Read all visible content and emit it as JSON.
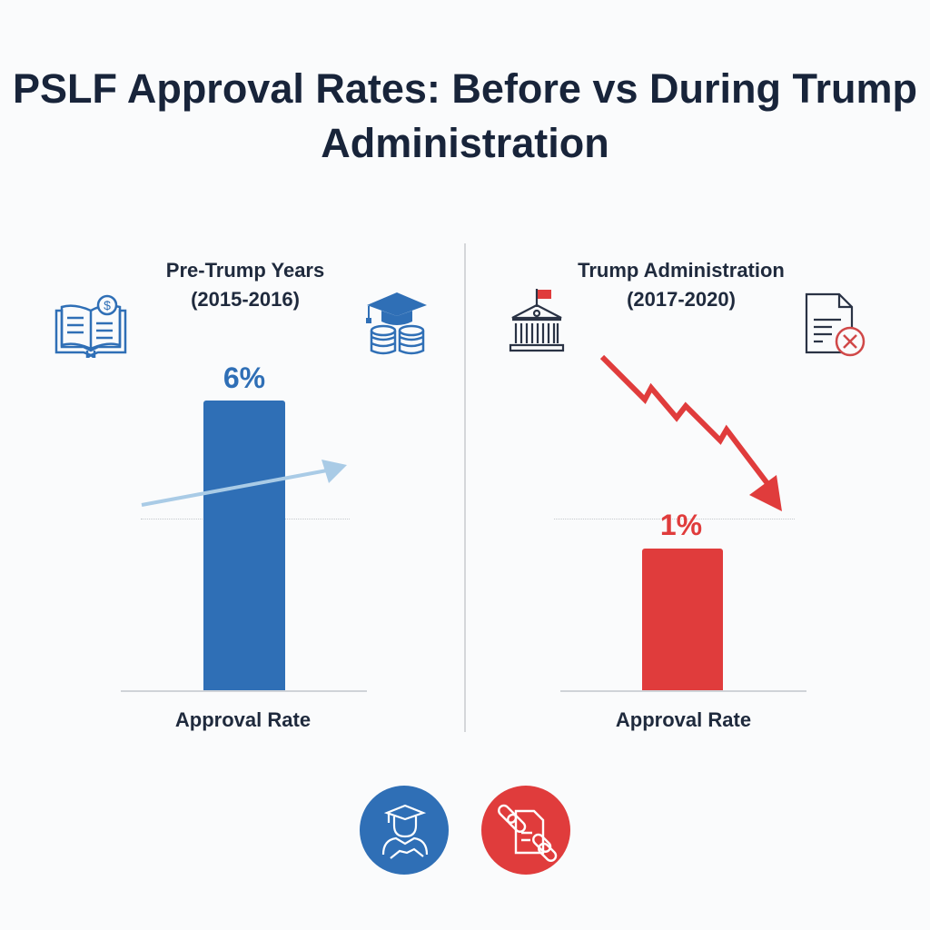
{
  "chart_data": [
    {
      "type": "bar",
      "title": "Pre-Trump Years",
      "subtitle": "(2015-2016)",
      "categories": [
        "Approval Rate"
      ],
      "values": [
        6
      ],
      "value_label": "6%",
      "color": "#2f6fb6",
      "grid": false
    },
    {
      "type": "bar",
      "title": "Trump Administration",
      "subtitle": "(2017-2020)",
      "categories": [
        "Approval Rate"
      ],
      "values": [
        1
      ],
      "value_label": "1%",
      "color": "#e03c3c",
      "grid": false
    }
  ],
  "title": "PSLF Approval Rates: Before vs During Trump Administration",
  "colors": {
    "blue": "#2f6fb6",
    "red": "#e03c3c",
    "trend_up": "#a9cbe6"
  },
  "icons": {
    "left_top_left": "book-dollar-icon",
    "left_top_right": "graduation-cap-coins-icon",
    "right_top_left": "government-building-icon",
    "right_top_right": "document-rejected-icon",
    "bottom_left": "graduate-handshake-icon",
    "bottom_right": "chained-document-icon",
    "left_trend": "trend-up-arrow-icon",
    "right_trend": "trend-down-arrow-icon"
  }
}
